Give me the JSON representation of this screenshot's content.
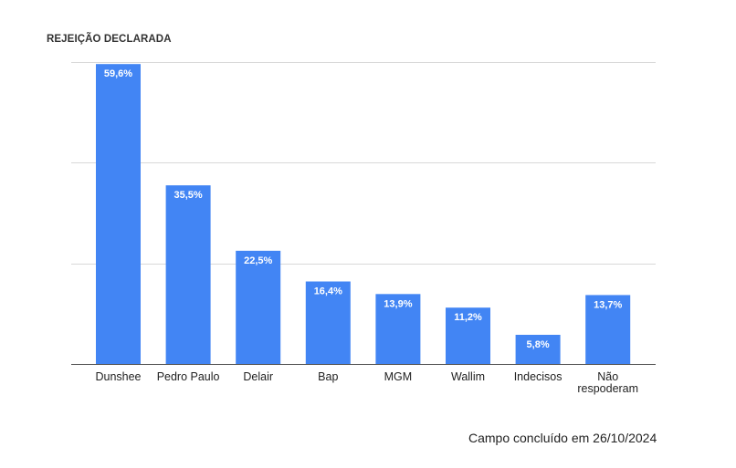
{
  "chart_data": {
    "type": "bar",
    "title": "REJEIÇÃO DECLARADA",
    "xlabel": "",
    "ylabel": "",
    "categories": [
      "Dunshee",
      "Pedro Paulo",
      "Delair",
      "Bap",
      "MGM",
      "Wallim",
      "Indecisos",
      "Não respoderam"
    ],
    "values": [
      59.6,
      35.5,
      22.5,
      16.4,
      13.9,
      11.2,
      5.8,
      13.7
    ],
    "value_labels": [
      "59,6%",
      "35,5%",
      "22,5%",
      "16,4%",
      "13,9%",
      "11,2%",
      "5,8%",
      "13,7%"
    ],
    "ylim": [
      0,
      60
    ],
    "y_gridlines": [
      0,
      20,
      40,
      60
    ],
    "grid": true,
    "legend": "none",
    "bar_color": "#4285f4"
  },
  "footer": {
    "note": "Campo concluído em 26/10/2024"
  }
}
